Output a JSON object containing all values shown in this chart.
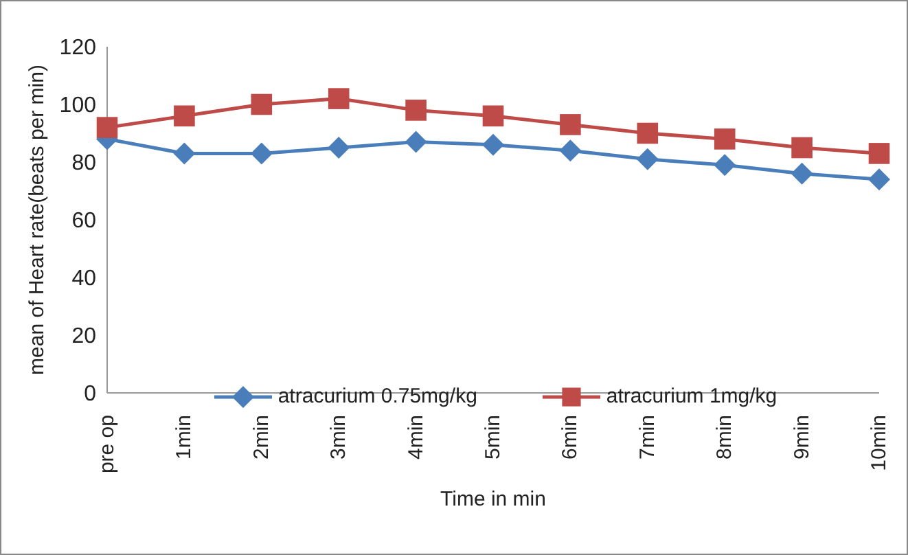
{
  "chart_data": {
    "type": "line",
    "xlabel": "Time in min",
    "ylabel": "mean of Heart rate(beats per min)",
    "categories": [
      "pre op",
      "1min",
      "2min",
      "3min",
      "4min",
      "5min",
      "6min",
      "7min",
      "8min",
      "9min",
      "10min"
    ],
    "series": [
      {
        "name": "atracurium 0.75mg/kg",
        "color": "#4a7ebb",
        "marker": "diamond",
        "values": [
          88,
          83,
          83,
          85,
          87,
          86,
          84,
          81,
          79,
          76,
          74
        ]
      },
      {
        "name": "atracurium 1mg/kg",
        "color": "#be4b48",
        "marker": "square",
        "values": [
          92,
          96,
          100,
          102,
          98,
          96,
          93,
          90,
          88,
          85,
          83
        ]
      }
    ],
    "ylim": [
      0,
      120
    ],
    "yticks": [
      0,
      20,
      40,
      60,
      80,
      100,
      120
    ],
    "grid": false,
    "legend": "bottom"
  }
}
